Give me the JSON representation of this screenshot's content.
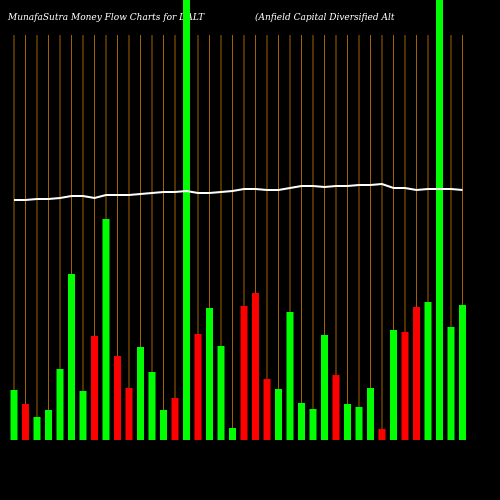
{
  "chart_data": {
    "type": "bar",
    "title": "MunafaSutra  Money Flow  Charts for DALT",
    "subtitle": "(Anfield Capital Diversified Alt",
    "categories": [
      null,
      null,
      null,
      null,
      null,
      null,
      null,
      null,
      null,
      null,
      null,
      null,
      null,
      null,
      null,
      null,
      null,
      null,
      null,
      null,
      null,
      null,
      null,
      null,
      null,
      null,
      null,
      null,
      null,
      null,
      null,
      null,
      null,
      null,
      null,
      null,
      null,
      null,
      null,
      null
    ],
    "values": [
      50,
      36,
      23,
      30,
      71,
      166,
      49,
      104,
      221,
      84,
      52,
      93,
      68,
      30,
      42,
      440,
      106,
      132,
      94,
      12,
      134,
      147,
      61,
      51,
      128,
      37,
      31,
      105,
      65,
      36,
      33,
      52,
      11,
      110,
      108,
      133,
      138,
      440,
      113,
      135
    ],
    "colors": [
      "#00ff00",
      "#ff0000",
      "#00ff00",
      "#00ff00",
      "#00ff00",
      "#00ff00",
      "#00ff00",
      "#ff0000",
      "#00ff00",
      "#ff0000",
      "#ff0000",
      "#00ff00",
      "#00ff00",
      "#00ff00",
      "#ff0000",
      "#00ff00",
      "#ff0000",
      "#00ff00",
      "#00ff00",
      "#00ff00",
      "#ff0000",
      "#ff0000",
      "#ff0000",
      "#00ff00",
      "#00ff00",
      "#00ff00",
      "#00ff00",
      "#00ff00",
      "#ff0000",
      "#00ff00",
      "#00ff00",
      "#00ff00",
      "#ff0000",
      "#00ff00",
      "#ff0000",
      "#ff0000",
      "#00ff00",
      "#00ff00",
      "#00ff00",
      "#00ff00"
    ],
    "line": {
      "color": "#ffffff",
      "values": [
        240,
        240,
        241,
        241,
        242,
        244,
        244,
        242,
        245,
        245,
        245,
        246,
        247,
        248,
        248,
        249,
        247,
        247,
        248,
        249,
        251,
        251,
        250,
        250,
        252,
        254,
        254,
        253,
        254,
        254,
        255,
        255,
        256,
        252,
        252,
        250,
        251,
        251,
        251,
        250
      ]
    },
    "grid_color": "#cc7a00",
    "ylim": [
      0,
      440
    ]
  }
}
